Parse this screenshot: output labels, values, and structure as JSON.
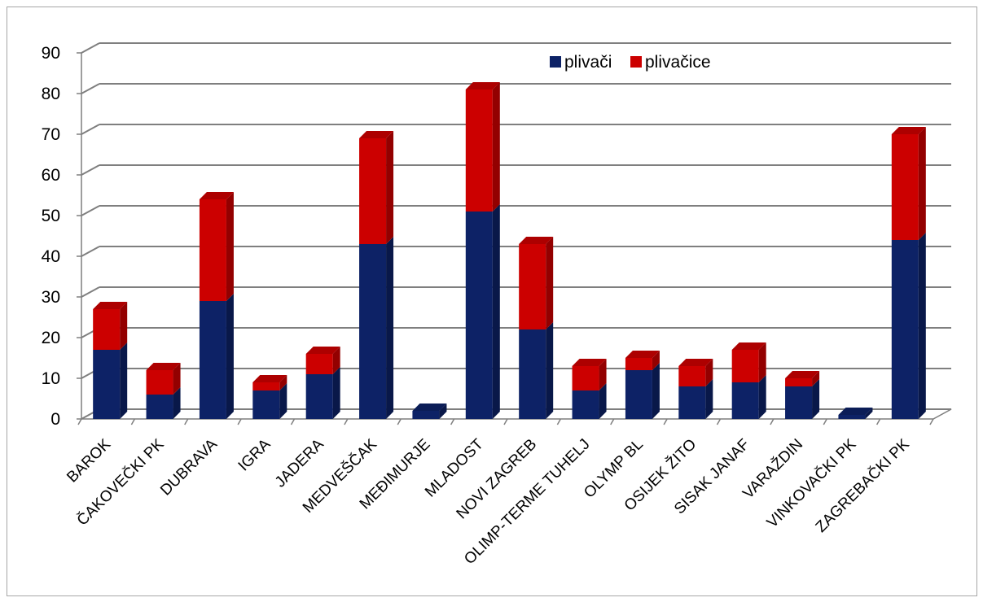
{
  "chart_data": {
    "type": "bar",
    "stacked": true,
    "three_d": true,
    "categories": [
      "BAROK",
      "ČAKOVEČKI PK",
      "DUBRAVA",
      "IGRA",
      "JADERA",
      "MEDVEŠČAK",
      "MEĐIMURJE",
      "MLADOST",
      "NOVI ZAGREB",
      "OLIMP-TERME TUHELJ",
      "OLYMP BL",
      "OSIJEK ŽITO",
      "SISAK JANAF",
      "VARAŽDIN",
      "VINKOVAČKI PK",
      "ZAGREBAČKI PK"
    ],
    "series": [
      {
        "name": "plivači",
        "color": "#0d2266",
        "values": [
          17,
          6,
          29,
          7,
          11,
          43,
          2,
          51,
          22,
          7,
          12,
          8,
          9,
          8,
          1,
          44
        ]
      },
      {
        "name": "plivačice",
        "color": "#cc0000",
        "values": [
          10,
          6,
          25,
          2,
          5,
          26,
          0,
          30,
          21,
          6,
          3,
          5,
          8,
          2,
          0,
          26
        ]
      }
    ],
    "ylim": [
      0,
      90
    ],
    "yticks": [
      0,
      10,
      20,
      30,
      40,
      50,
      60,
      70,
      80,
      90
    ],
    "grid": true,
    "legend_position": "top-right"
  }
}
